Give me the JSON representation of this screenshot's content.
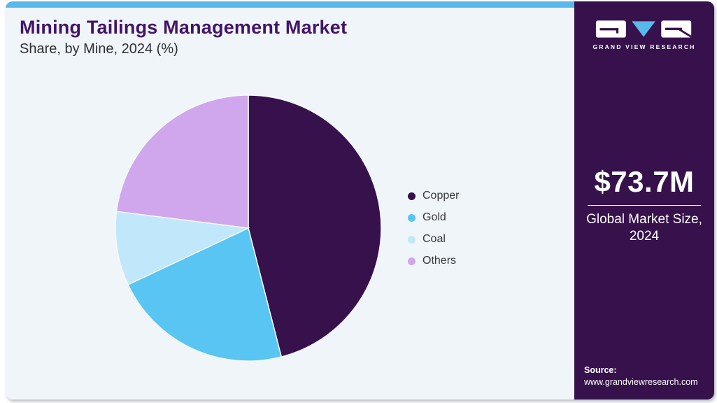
{
  "header": {
    "title": "Mining Tailings Management Market",
    "subtitle": "Share, by Mine, 2024 (%)"
  },
  "chart_data": {
    "type": "pie",
    "title": "Mining Tailings Management Market Share, by Mine, 2024 (%)",
    "labels": [
      "Copper",
      "Gold",
      "Coal",
      "Others"
    ],
    "values": [
      46,
      22,
      9,
      23
    ],
    "unit": "%",
    "colors": [
      "#36114b",
      "#58c5f2",
      "#c1e8fa",
      "#d0a7ec"
    ],
    "start_angle_deg": 0,
    "direction": "clockwise",
    "legend_position": "right",
    "data_labels_shown": false
  },
  "sidebar": {
    "logo_text": "GRAND VIEW RESEARCH",
    "market_size_value": "$73.7M",
    "market_size_label": "Global Market Size, 2024",
    "source_label": "Source:",
    "source_url": "www.grandviewresearch.com"
  },
  "theme": {
    "topbar_color": "#58b8e9",
    "card_bg": "#eff5f9",
    "sidebar_bg": "#36114b",
    "title_color": "#431467",
    "slice_gap_color": "#f4f9fc"
  }
}
